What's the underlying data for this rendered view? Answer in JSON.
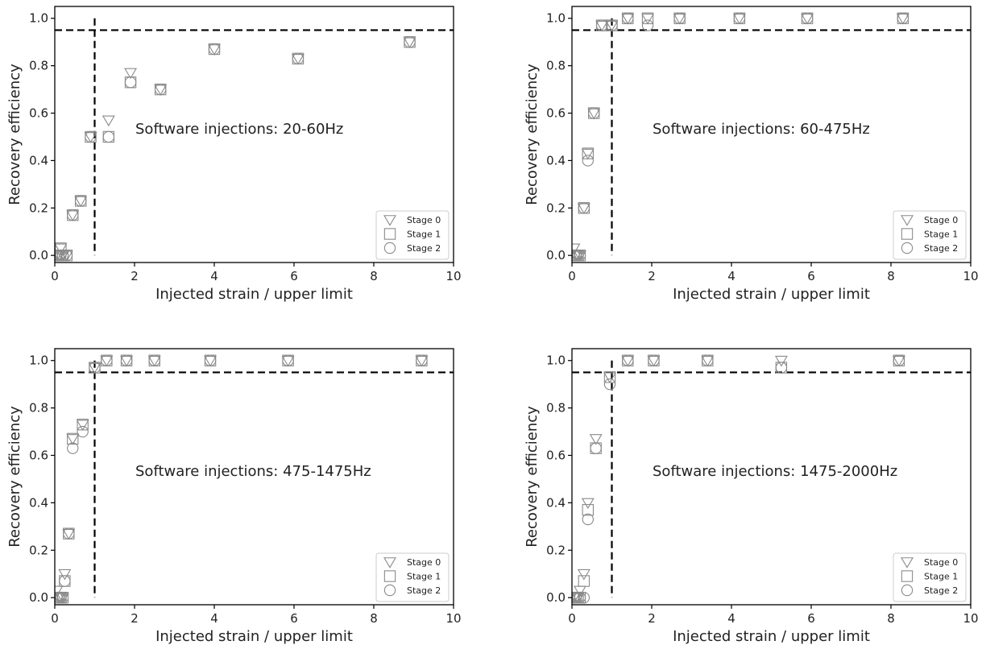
{
  "chart_data": [
    {
      "type": "scatter",
      "annotation": "Software injections: 20-60Hz",
      "xlabel": "Injected strain / upper limit",
      "ylabel": "Recovery efficiency",
      "xlim": [
        0,
        10
      ],
      "ylim": [
        -0.03,
        1.05
      ],
      "xticks": [
        "0",
        "2",
        "4",
        "6",
        "8",
        "10"
      ],
      "yticks": [
        "0.0",
        "0.2",
        "0.4",
        "0.6",
        "0.8",
        "1.0"
      ],
      "reference_lines": {
        "vertical_x": 1,
        "horizontal_y": 0.95
      },
      "legend_position": "lower-right",
      "series": [
        {
          "name": "Stage 0",
          "x": [
            0.05,
            0.1,
            0.15,
            0.2,
            0.3,
            0.45,
            0.65,
            0.9,
            1.35,
            1.9,
            2.65,
            4.0,
            6.1,
            8.9
          ],
          "y": [
            0.0,
            0.0,
            0.03,
            0.0,
            0.0,
            0.17,
            0.23,
            0.5,
            0.57,
            0.77,
            0.7,
            0.87,
            0.83,
            0.9
          ]
        },
        {
          "name": "Stage 1",
          "x": [
            0.05,
            0.1,
            0.15,
            0.2,
            0.3,
            0.45,
            0.65,
            0.9,
            1.35,
            1.9,
            2.65,
            4.0,
            6.1,
            8.9
          ],
          "y": [
            0.0,
            0.0,
            0.03,
            0.0,
            0.0,
            0.17,
            0.23,
            0.5,
            0.5,
            0.73,
            0.7,
            0.87,
            0.83,
            0.9
          ]
        },
        {
          "name": "Stage 2",
          "x": [
            0.05,
            0.1,
            0.15,
            0.2,
            0.3,
            0.45,
            0.65,
            0.9,
            1.35,
            1.9,
            2.65,
            4.0,
            6.1,
            8.9
          ],
          "y": [
            0.0,
            0.0,
            0.0,
            0.0,
            0.0,
            0.17,
            0.23,
            0.5,
            0.5,
            0.73,
            0.7,
            0.87,
            0.83,
            0.9
          ]
        }
      ]
    },
    {
      "type": "scatter",
      "annotation": "Software injections: 60-475Hz",
      "xlabel": "Injected strain / upper limit",
      "ylabel": "Recovery efficiency",
      "xlim": [
        0,
        10
      ],
      "ylim": [
        -0.03,
        1.05
      ],
      "xticks": [
        "0",
        "2",
        "4",
        "6",
        "8",
        "10"
      ],
      "yticks": [
        "0.0",
        "0.2",
        "0.4",
        "0.6",
        "0.8",
        "1.0"
      ],
      "reference_lines": {
        "vertical_x": 1,
        "horizontal_y": 0.95
      },
      "legend_position": "lower-right",
      "series": [
        {
          "name": "Stage 0",
          "x": [
            0.05,
            0.1,
            0.15,
            0.2,
            0.3,
            0.4,
            0.55,
            0.75,
            1.0,
            1.4,
            1.9,
            2.7,
            4.2,
            5.9,
            8.3
          ],
          "y": [
            0.03,
            0.0,
            0.0,
            0.0,
            0.2,
            0.43,
            0.6,
            0.97,
            0.97,
            1.0,
            1.0,
            1.0,
            1.0,
            1.0,
            1.0
          ]
        },
        {
          "name": "Stage 1",
          "x": [
            0.05,
            0.1,
            0.15,
            0.2,
            0.3,
            0.4,
            0.55,
            0.75,
            1.0,
            1.4,
            1.9,
            2.7,
            4.2,
            5.9,
            8.3
          ],
          "y": [
            0.0,
            0.0,
            0.0,
            0.0,
            0.2,
            0.43,
            0.6,
            0.97,
            0.97,
            1.0,
            1.0,
            1.0,
            1.0,
            1.0,
            1.0
          ]
        },
        {
          "name": "Stage 2",
          "x": [
            0.05,
            0.1,
            0.15,
            0.2,
            0.3,
            0.4,
            0.55,
            0.75,
            1.0,
            1.4,
            1.9,
            2.7,
            4.2,
            5.9,
            8.3
          ],
          "y": [
            0.0,
            0.0,
            0.0,
            0.0,
            0.2,
            0.4,
            0.6,
            0.97,
            0.97,
            1.0,
            0.97,
            1.0,
            1.0,
            1.0,
            1.0
          ]
        }
      ]
    },
    {
      "type": "scatter",
      "annotation": "Software injections: 475-1475Hz",
      "xlabel": "Injected strain / upper limit",
      "ylabel": "Recovery efficiency",
      "xlim": [
        0,
        10
      ],
      "ylim": [
        -0.03,
        1.05
      ],
      "xticks": [
        "0",
        "2",
        "4",
        "6",
        "8",
        "10"
      ],
      "yticks": [
        "0.0",
        "0.2",
        "0.4",
        "0.6",
        "0.8",
        "1.0"
      ],
      "reference_lines": {
        "vertical_x": 1,
        "horizontal_y": 0.95
      },
      "legend_position": "lower-right",
      "series": [
        {
          "name": "Stage 0",
          "x": [
            0.05,
            0.1,
            0.15,
            0.2,
            0.25,
            0.35,
            0.45,
            0.7,
            1.0,
            1.3,
            1.8,
            2.5,
            3.9,
            5.85,
            9.2
          ],
          "y": [
            0.03,
            0.0,
            0.0,
            0.0,
            0.1,
            0.27,
            0.67,
            0.73,
            0.97,
            1.0,
            1.0,
            1.0,
            1.0,
            1.0,
            1.0
          ]
        },
        {
          "name": "Stage 1",
          "x": [
            0.05,
            0.1,
            0.15,
            0.2,
            0.25,
            0.35,
            0.45,
            0.7,
            1.0,
            1.3,
            1.8,
            2.5,
            3.9,
            5.85,
            9.2
          ],
          "y": [
            0.0,
            0.0,
            0.0,
            0.0,
            0.07,
            0.27,
            0.67,
            0.73,
            0.97,
            1.0,
            1.0,
            1.0,
            1.0,
            1.0,
            1.0
          ]
        },
        {
          "name": "Stage 2",
          "x": [
            0.05,
            0.1,
            0.15,
            0.2,
            0.25,
            0.35,
            0.45,
            0.7,
            1.0,
            1.3,
            1.8,
            2.5,
            3.9,
            5.85,
            9.2
          ],
          "y": [
            0.0,
            0.0,
            0.0,
            0.0,
            0.07,
            0.27,
            0.63,
            0.7,
            0.97,
            1.0,
            1.0,
            1.0,
            1.0,
            1.0,
            1.0
          ]
        }
      ]
    },
    {
      "type": "scatter",
      "annotation": "Software injections: 1475-2000Hz",
      "xlabel": "Injected strain / upper limit",
      "ylabel": "Recovery efficiency",
      "xlim": [
        0,
        10
      ],
      "ylim": [
        -0.03,
        1.05
      ],
      "xticks": [
        "0",
        "2",
        "4",
        "6",
        "8",
        "10"
      ],
      "yticks": [
        "0.0",
        "0.2",
        "0.4",
        "0.6",
        "0.8",
        "1.0"
      ],
      "reference_lines": {
        "vertical_x": 1,
        "horizontal_y": 0.95
      },
      "legend_position": "lower-right",
      "series": [
        {
          "name": "Stage 0",
          "x": [
            0.05,
            0.1,
            0.15,
            0.2,
            0.3,
            0.4,
            0.6,
            0.95,
            1.4,
            2.05,
            3.4,
            5.25,
            8.2
          ],
          "y": [
            0.0,
            0.0,
            0.0,
            0.03,
            0.1,
            0.4,
            0.67,
            0.93,
            1.0,
            1.0,
            1.0,
            1.0,
            1.0
          ]
        },
        {
          "name": "Stage 1",
          "x": [
            0.05,
            0.1,
            0.15,
            0.2,
            0.3,
            0.4,
            0.6,
            0.95,
            1.4,
            2.05,
            3.4,
            5.25,
            8.2
          ],
          "y": [
            0.0,
            0.0,
            0.0,
            0.0,
            0.07,
            0.37,
            0.63,
            0.93,
            1.0,
            1.0,
            1.0,
            0.97,
            1.0
          ]
        },
        {
          "name": "Stage 2",
          "x": [
            0.05,
            0.1,
            0.15,
            0.2,
            0.3,
            0.4,
            0.6,
            0.95,
            1.4,
            2.05,
            3.4,
            5.25,
            8.2
          ],
          "y": [
            0.0,
            0.0,
            0.0,
            0.0,
            0.0,
            0.33,
            0.63,
            0.9,
            1.0,
            1.0,
            1.0,
            0.97,
            1.0
          ]
        }
      ]
    }
  ]
}
